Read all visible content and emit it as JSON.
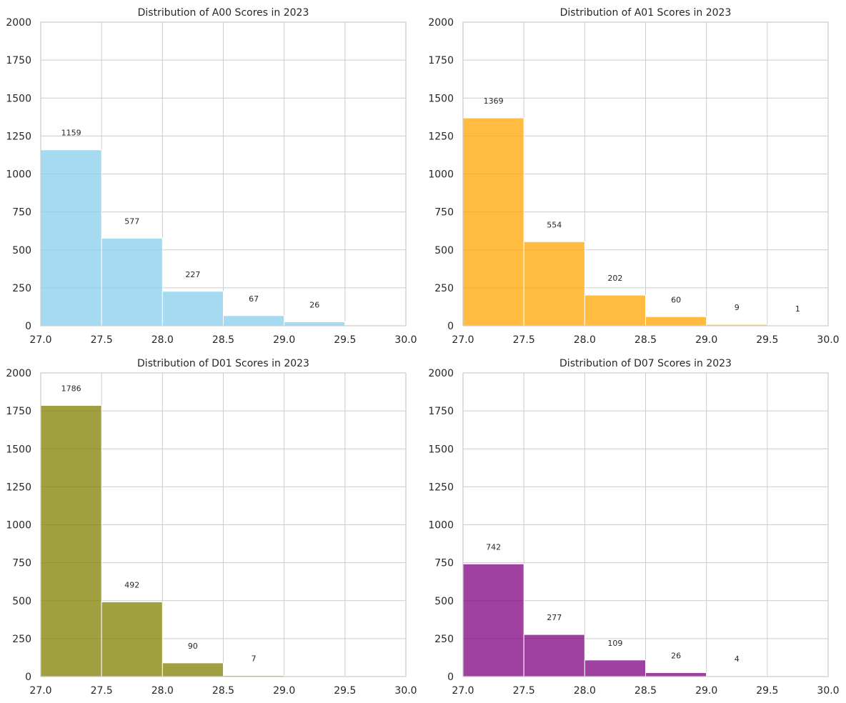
{
  "chart_data": [
    {
      "type": "bar",
      "title": "Distribution of A00 Scores in 2023",
      "bin_edges": [
        27.0,
        27.5,
        28.0,
        28.5,
        29.0,
        29.5,
        30.0
      ],
      "values": [
        1159,
        577,
        227,
        67,
        26,
        5
      ],
      "data_labels": [
        "1159",
        "577",
        "227",
        "67",
        "26",
        ""
      ],
      "color": "#87ceeb",
      "xlim": [
        27.0,
        30.0
      ],
      "ylim": [
        0,
        2000
      ],
      "xticks": [
        "27.0",
        "27.5",
        "28.0",
        "28.5",
        "29.0",
        "29.5",
        "30.0"
      ],
      "yticks": [
        "0",
        "250",
        "500",
        "750",
        "1000",
        "1250",
        "1500",
        "1750",
        "2000"
      ],
      "grid": true
    },
    {
      "type": "bar",
      "title": "Distribution of A01 Scores in 2023",
      "bin_edges": [
        27.0,
        27.5,
        28.0,
        28.5,
        29.0,
        29.5,
        30.0
      ],
      "values": [
        1369,
        554,
        202,
        60,
        9,
        1
      ],
      "data_labels": [
        "1369",
        "554",
        "202",
        "60",
        "9",
        "1"
      ],
      "color": "#ffa500",
      "xlim": [
        27.0,
        30.0
      ],
      "ylim": [
        0,
        2000
      ],
      "xticks": [
        "27.0",
        "27.5",
        "28.0",
        "28.5",
        "29.0",
        "29.5",
        "30.0"
      ],
      "yticks": [
        "0",
        "250",
        "500",
        "750",
        "1000",
        "1250",
        "1500",
        "1750",
        "2000"
      ],
      "grid": true
    },
    {
      "type": "bar",
      "title": "Distribution of D01 Scores in 2023",
      "bin_edges": [
        27.0,
        27.5,
        28.0,
        28.5,
        29.0,
        29.5,
        30.0
      ],
      "values": [
        1786,
        492,
        90,
        7,
        2,
        0
      ],
      "data_labels": [
        "1786",
        "492",
        "90",
        "7",
        "",
        ""
      ],
      "color": "#808000",
      "xlim": [
        27.0,
        30.0
      ],
      "ylim": [
        0,
        2000
      ],
      "xticks": [
        "27.0",
        "27.5",
        "28.0",
        "28.5",
        "29.0",
        "29.5",
        "30.0"
      ],
      "yticks": [
        "0",
        "250",
        "500",
        "750",
        "1000",
        "1250",
        "1500",
        "1750",
        "2000"
      ],
      "grid": true
    },
    {
      "type": "bar",
      "title": "Distribution of D07 Scores in 2023",
      "bin_edges": [
        27.0,
        27.5,
        28.0,
        28.5,
        29.0,
        29.5,
        30.0
      ],
      "values": [
        742,
        277,
        109,
        26,
        4,
        2
      ],
      "data_labels": [
        "742",
        "277",
        "109",
        "26",
        "4",
        ""
      ],
      "color": "#800080",
      "xlim": [
        27.0,
        30.0
      ],
      "ylim": [
        0,
        2000
      ],
      "xticks": [
        "27.0",
        "27.5",
        "28.0",
        "28.5",
        "29.0",
        "29.5",
        "30.0"
      ],
      "yticks": [
        "0",
        "250",
        "500",
        "750",
        "1000",
        "1250",
        "1500",
        "1750",
        "2000"
      ],
      "grid": true
    }
  ]
}
